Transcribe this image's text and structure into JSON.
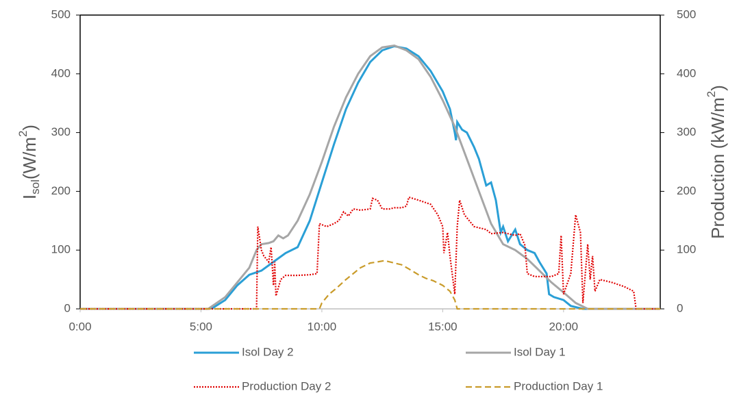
{
  "chart_data": {
    "type": "line",
    "ylabel": [
      "I",
      "sol",
      "(W/m",
      "2",
      ")"
    ],
    "y2label": [
      "Production (kW/m",
      "2",
      ")"
    ],
    "xlim": [
      0,
      24
    ],
    "xticks": [
      {
        "value": 0,
        "label": "0:00"
      },
      {
        "value": 5,
        "label": "5:00"
      },
      {
        "value": 10,
        "label": "10:00"
      },
      {
        "value": 15,
        "label": "15:00"
      },
      {
        "value": 20,
        "label": "20:00"
      }
    ],
    "ylim": [
      0,
      500
    ],
    "yticks": [
      0,
      100,
      200,
      300,
      400,
      500
    ],
    "y2lim": [
      0,
      500
    ],
    "y2ticks": [
      0,
      100,
      200,
      300,
      400,
      500
    ],
    "legend": "bottom",
    "series": [
      {
        "name": "Isol Day 2",
        "color": "#2a9fd6",
        "style": "solid",
        "x": [
          0,
          5.3,
          5.5,
          6,
          6.5,
          7,
          7.5,
          8,
          8.5,
          9,
          9.5,
          10,
          10.5,
          11,
          11.5,
          12,
          12.5,
          13,
          13.5,
          14,
          14.5,
          15,
          15.3,
          15.5,
          15.55,
          15.6,
          15.8,
          16,
          16.3,
          16.5,
          16.8,
          17,
          17.2,
          17.4,
          17.5,
          17.7,
          18,
          18.2,
          18.5,
          18.8,
          19,
          19.3,
          19.4,
          19.6,
          20,
          20.3,
          20.8,
          24
        ],
        "values": [
          0,
          0,
          2,
          15,
          40,
          58,
          65,
          80,
          95,
          105,
          150,
          215,
          280,
          340,
          385,
          420,
          440,
          447,
          443,
          430,
          405,
          370,
          340,
          300,
          287,
          318,
          305,
          300,
          275,
          255,
          210,
          215,
          185,
          130,
          140,
          115,
          135,
          110,
          100,
          95,
          80,
          60,
          25,
          20,
          15,
          5,
          0,
          0
        ]
      },
      {
        "name": "Isol Day 1",
        "color": "#a6a6a6",
        "style": "solid",
        "x": [
          0,
          5.3,
          6,
          6.5,
          7,
          7.3,
          7.5,
          7.8,
          8,
          8.2,
          8.4,
          8.6,
          9,
          9.5,
          10,
          10.5,
          11,
          11.5,
          12,
          12.5,
          13,
          13.5,
          14,
          14.5,
          15,
          15.5,
          16,
          16.5,
          17,
          17.5,
          18,
          18.5,
          19,
          19.5,
          20,
          20.5,
          21,
          24
        ],
        "values": [
          0,
          0,
          20,
          45,
          70,
          100,
          110,
          112,
          115,
          125,
          120,
          125,
          150,
          195,
          250,
          310,
          360,
          400,
          430,
          445,
          448,
          440,
          425,
          395,
          355,
          310,
          255,
          200,
          145,
          110,
          100,
          85,
          65,
          45,
          28,
          10,
          0,
          0
        ]
      },
      {
        "name": "Production Day 2",
        "color": "#e00000",
        "style": "dotted",
        "axis": "y2",
        "x": [
          0,
          7.3,
          7.35,
          7.5,
          7.6,
          7.8,
          7.9,
          8,
          8.05,
          8.1,
          8.3,
          8.5,
          9,
          9.5,
          9.8,
          9.9,
          10.2,
          10.5,
          10.7,
          10.9,
          11.1,
          11.3,
          11.6,
          12,
          12.1,
          12.3,
          12.5,
          12.8,
          13,
          13.3,
          13.5,
          13.6,
          14,
          14.5,
          14.8,
          15,
          15.05,
          15.2,
          15.3,
          15.5,
          15.6,
          15.7,
          15.9,
          16.3,
          16.8,
          17,
          17.5,
          18,
          18.2,
          18.4,
          18.5,
          18.8,
          19,
          19.5,
          19.8,
          19.9,
          20,
          20.3,
          20.5,
          20.7,
          20.8,
          21,
          21.1,
          21.2,
          21.3,
          21.5,
          22,
          22.5,
          22.9,
          23,
          24
        ],
        "values": [
          0,
          0,
          140,
          100,
          90,
          80,
          105,
          40,
          80,
          22,
          50,
          57,
          57,
          58,
          60,
          145,
          140,
          145,
          150,
          165,
          158,
          170,
          168,
          170,
          188,
          185,
          170,
          170,
          172,
          172,
          175,
          190,
          185,
          178,
          160,
          140,
          95,
          130,
          90,
          25,
          140,
          185,
          160,
          140,
          135,
          128,
          130,
          125,
          128,
          108,
          60,
          55,
          55,
          55,
          60,
          125,
          25,
          60,
          160,
          130,
          10,
          110,
          50,
          90,
          30,
          50,
          45,
          38,
          30,
          0,
          0
        ]
      },
      {
        "name": "Production Day 1",
        "color": "#c99b2a",
        "style": "dashed",
        "axis": "y2",
        "x": [
          0,
          9.9,
          10,
          10.3,
          10.6,
          11,
          11.3,
          11.6,
          12,
          12.3,
          12.6,
          13,
          13.3,
          13.6,
          14,
          14.3,
          14.6,
          15,
          15.3,
          15.5,
          15.6,
          24
        ],
        "values": [
          0,
          0,
          10,
          25,
          35,
          50,
          60,
          70,
          78,
          80,
          82,
          78,
          75,
          68,
          58,
          52,
          48,
          40,
          30,
          15,
          0,
          0
        ]
      }
    ]
  }
}
